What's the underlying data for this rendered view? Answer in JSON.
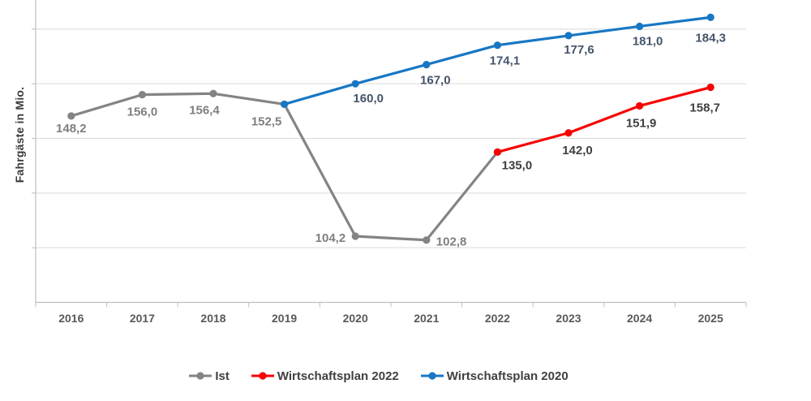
{
  "chart_data": {
    "type": "line",
    "title": "",
    "xlabel": "",
    "ylabel": "Fahrgäste in Mio.",
    "categories": [
      "2016",
      "2017",
      "2018",
      "2019",
      "2020",
      "2021",
      "2022",
      "2023",
      "2024",
      "2025"
    ],
    "ylim": [
      80,
      191
    ],
    "y_gridline_step": 20,
    "y_tick_labels_shown": false,
    "grid": "horizontal",
    "legend_position": "bottom",
    "decimal_separator": ",",
    "series": [
      {
        "name": "Ist",
        "color": "#848484",
        "label_color": "#7F7F7F",
        "points": [
          {
            "year": "2016",
            "value": 148.2,
            "label": "148,2"
          },
          {
            "year": "2017",
            "value": 156.0,
            "label": "156,0"
          },
          {
            "year": "2018",
            "value": 156.4,
            "label": "156,4"
          },
          {
            "year": "2019",
            "value": 152.5,
            "label": "152,5"
          },
          {
            "year": "2020",
            "value": 104.2,
            "label": "104,2"
          },
          {
            "year": "2021",
            "value": 102.8,
            "label": "102,8"
          },
          {
            "year": "2022",
            "value": 135.0,
            "label": ""
          }
        ]
      },
      {
        "name": "Wirtschaftsplan 2022",
        "color": "#F70000",
        "label_color": "#3F3F3F",
        "points": [
          {
            "year": "2022",
            "value": 135.0,
            "label": "135,0"
          },
          {
            "year": "2023",
            "value": 142.0,
            "label": "142,0"
          },
          {
            "year": "2024",
            "value": 151.9,
            "label": "151,9"
          },
          {
            "year": "2025",
            "value": 158.7,
            "label": "158,7"
          }
        ]
      },
      {
        "name": "Wirtschaftsplan 2020",
        "color": "#1777C4",
        "label_color": "#44546A",
        "points": [
          {
            "year": "2019",
            "value": 152.5,
            "label": ""
          },
          {
            "year": "2020",
            "value": 160.0,
            "label": "160,0"
          },
          {
            "year": "2021",
            "value": 167.0,
            "label": "167,0"
          },
          {
            "year": "2022",
            "value": 174.1,
            "label": "174,1"
          },
          {
            "year": "2023",
            "value": 177.6,
            "label": "177,6"
          },
          {
            "year": "2024",
            "value": 181.0,
            "label": "181,0"
          },
          {
            "year": "2025",
            "value": 184.3,
            "label": "184,3"
          }
        ]
      }
    ],
    "colors": {
      "grid": "#D9D9D9",
      "axis": "#BFBFBF",
      "x_tick_labels": "#595959",
      "axis_title": "#3B3B3B",
      "legend_text": "#404040"
    }
  }
}
